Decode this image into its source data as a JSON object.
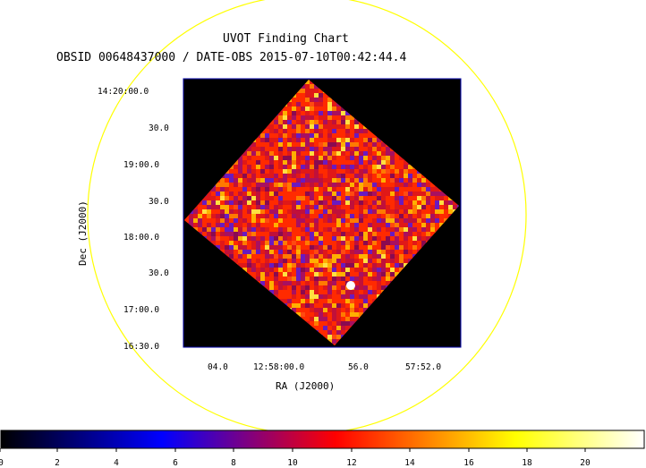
{
  "title": "UVOT Finding Chart",
  "subtitle": "OBSID 00648437000 / DATE-OBS 2015-07-10T00:42:44.4",
  "xlabel": "RA (J2000)",
  "ylabel": "Dec (J2000)",
  "ra_ticks": [
    "04.0",
    "12:58:00.0",
    "56.0",
    "57:52.0"
  ],
  "dec_ticks": [
    "14:20:00.0",
    "30.0",
    "19:00.0",
    "30.0",
    "18:00.0",
    "30.0",
    "17:00.0",
    "16:30.0"
  ],
  "colorbar": {
    "ticks": [
      "0",
      "2",
      "4",
      "6",
      "8",
      "10",
      "12",
      "14",
      "16",
      "18",
      "20"
    ],
    "stops": [
      "#000000",
      "#0000ff",
      "#ff0000",
      "#ffff00",
      "#ffffff"
    ]
  },
  "colors": {
    "circle": "#ffff00",
    "frame": "#0000aa",
    "image_bg": "#000000"
  }
}
